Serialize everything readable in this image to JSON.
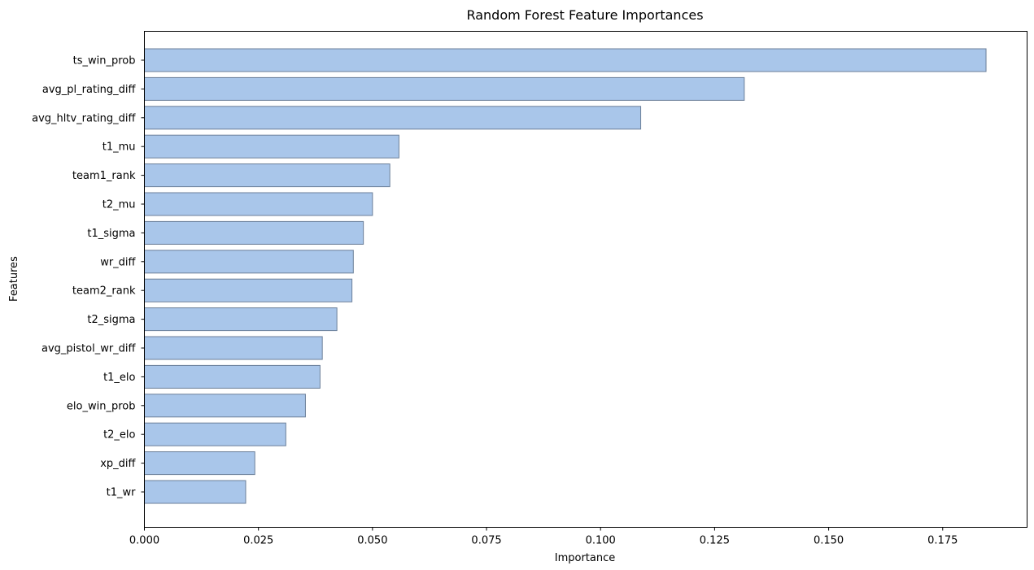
{
  "chart_data": {
    "type": "bar",
    "orientation": "horizontal",
    "title": "Random Forest Feature Importances",
    "xlabel": "Importance",
    "ylabel": "Features",
    "categories": [
      "ts_win_prob",
      "avg_pl_rating_diff",
      "avg_hltv_rating_diff",
      "t1_mu",
      "team1_rank",
      "t2_mu",
      "t1_sigma",
      "wr_diff",
      "team2_rank",
      "t2_sigma",
      "avg_pistol_wr_diff",
      "t1_elo",
      "elo_win_prob",
      "t2_elo",
      "xp_diff",
      "t1_wr"
    ],
    "values": [
      0.1845,
      0.1315,
      0.1088,
      0.0558,
      0.0538,
      0.05,
      0.048,
      0.0458,
      0.0455,
      0.0422,
      0.039,
      0.0385,
      0.0353,
      0.031,
      0.0242,
      0.0222
    ],
    "xlim": [
      0,
      0.1935
    ],
    "xticks": [
      "0.000",
      "0.025",
      "0.050",
      "0.075",
      "0.100",
      "0.125",
      "0.150",
      "0.175"
    ],
    "xtick_values": [
      0,
      0.025,
      0.05,
      0.075,
      0.1,
      0.125,
      0.15,
      0.175
    ],
    "grid": false,
    "colors": {
      "bar_fill": "#a9c6ea",
      "bar_edge": "#6b7f99",
      "axis": "#000000"
    }
  }
}
